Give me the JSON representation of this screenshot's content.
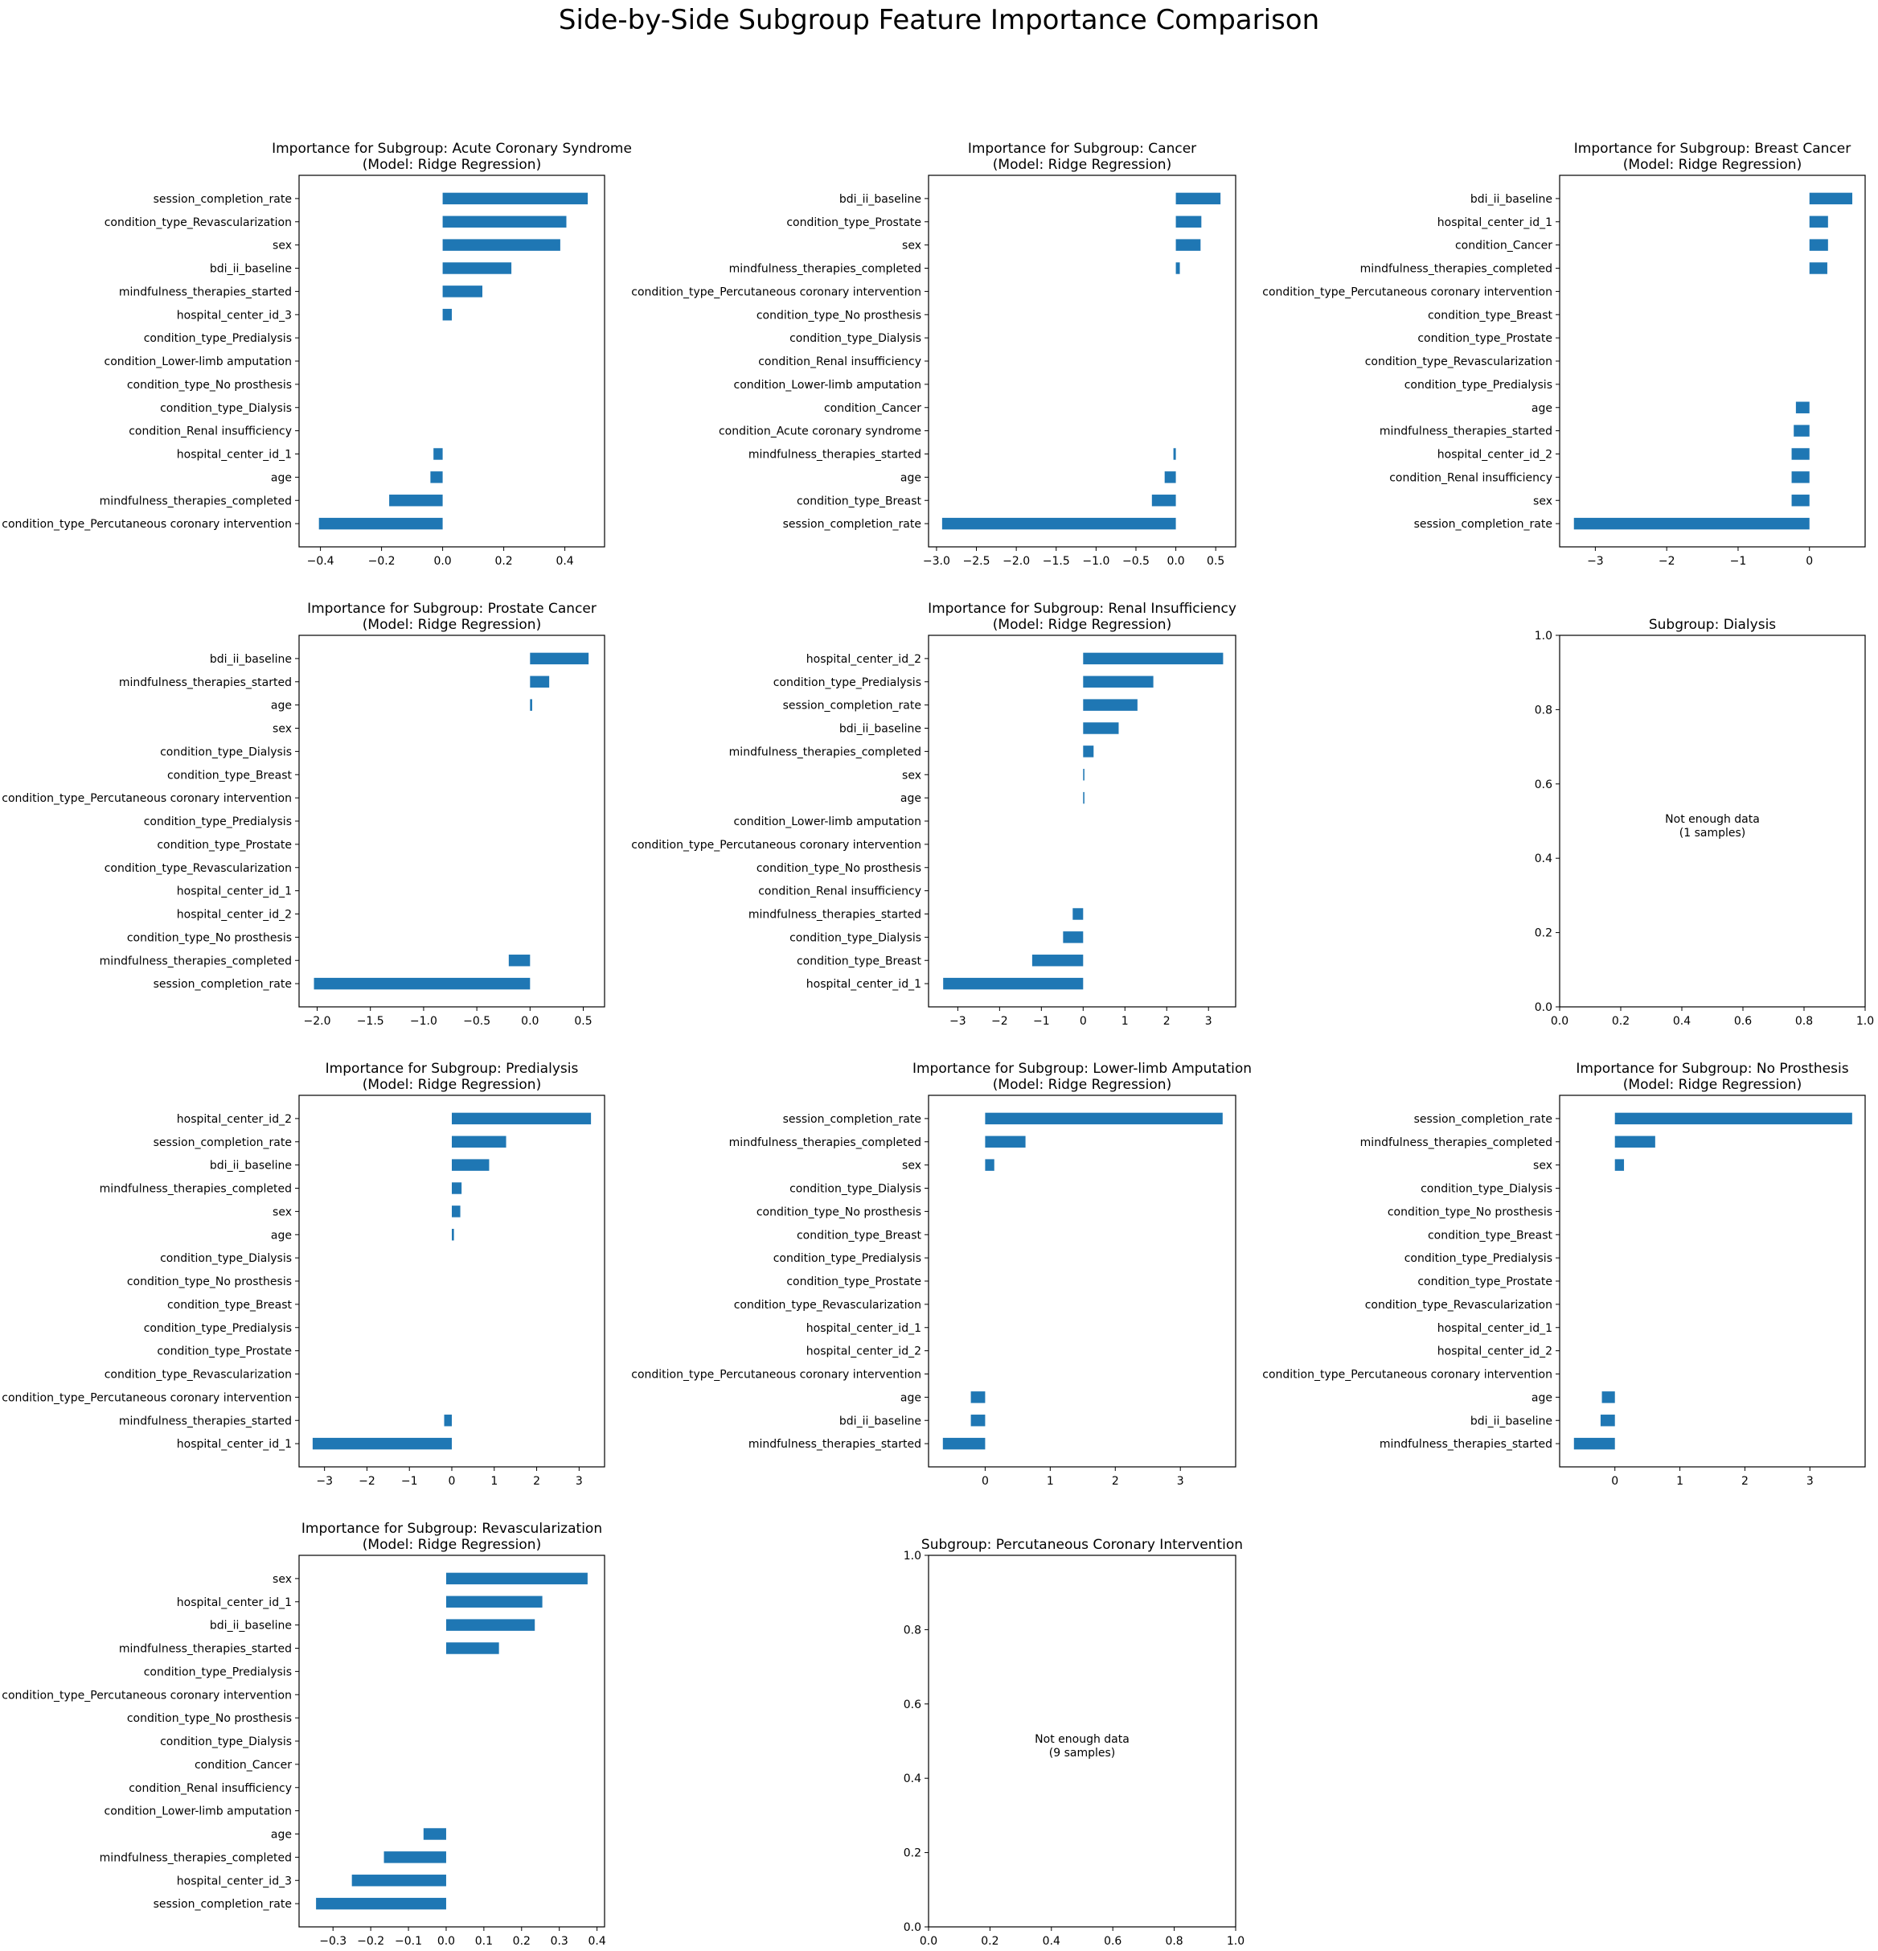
{
  "figure": {
    "suptitle": "Side-by-Side Subgroup Feature Importance Comparison",
    "bar_color": "#1f77b4"
  },
  "chart_data": [
    {
      "type": "bar",
      "orientation": "horizontal",
      "title": "Importance for Subgroup: Acute Coronary Syndrome\n(Model: Ridge Regression)",
      "categories": [
        "session_completion_rate",
        "condition_type_Revascularization",
        "sex",
        "bdi_ii_baseline",
        "mindfulness_therapies_started",
        "hospital_center_id_3",
        "condition_type_Predialysis",
        "condition_Lower-limb amputation",
        "condition_type_No prosthesis",
        "condition_type_Dialysis",
        "condition_Renal insufficiency",
        "hospital_center_id_1",
        "age",
        "mindfulness_therapies_completed",
        "condition_type_Percutaneous coronary intervention"
      ],
      "values": [
        0.475,
        0.405,
        0.385,
        0.225,
        0.13,
        0.03,
        0,
        0,
        0,
        0,
        0,
        -0.03,
        -0.04,
        -0.175,
        -0.405
      ],
      "xlim": [
        -0.47,
        0.53
      ],
      "xticks": [
        -0.4,
        -0.2,
        0.0,
        0.2,
        0.4
      ],
      "xtick_labels": [
        "−0.4",
        "−0.2",
        "0.0",
        "0.2",
        "0.4"
      ]
    },
    {
      "type": "bar",
      "orientation": "horizontal",
      "title": "Importance for Subgroup: Cancer\n(Model: Ridge Regression)",
      "categories": [
        "bdi_ii_baseline",
        "condition_type_Prostate",
        "sex",
        "mindfulness_therapies_completed",
        "condition_type_Percutaneous coronary intervention",
        "condition_type_No prosthesis",
        "condition_type_Dialysis",
        "condition_Renal insufficiency",
        "condition_Lower-limb amputation",
        "condition_Cancer",
        "condition_Acute coronary syndrome",
        "mindfulness_therapies_started",
        "age",
        "condition_type_Breast",
        "session_completion_rate"
      ],
      "values": [
        0.56,
        0.32,
        0.31,
        0.05,
        0,
        0,
        0,
        0,
        0,
        0,
        0,
        -0.03,
        -0.14,
        -0.3,
        -2.93
      ],
      "xlim": [
        -3.1,
        0.75
      ],
      "xticks": [
        -3.0,
        -2.5,
        -2.0,
        -1.5,
        -1.0,
        -0.5,
        0.0,
        0.5
      ],
      "xtick_labels": [
        "−3.0",
        "−2.5",
        "−2.0",
        "−1.5",
        "−1.0",
        "−0.5",
        "0.0",
        "0.5"
      ]
    },
    {
      "type": "bar",
      "orientation": "horizontal",
      "title": "Importance for Subgroup: Breast Cancer\n(Model: Ridge Regression)",
      "categories": [
        "bdi_ii_baseline",
        "hospital_center_id_1",
        "condition_Cancer",
        "mindfulness_therapies_completed",
        "condition_type_Percutaneous coronary intervention",
        "condition_type_Breast",
        "condition_type_Prostate",
        "condition_type_Revascularization",
        "condition_type_Predialysis",
        "age",
        "mindfulness_therapies_started",
        "hospital_center_id_2",
        "condition_Renal insufficiency",
        "sex",
        "session_completion_rate"
      ],
      "values": [
        0.6,
        0.26,
        0.26,
        0.25,
        0,
        0,
        0,
        0,
        0,
        -0.19,
        -0.22,
        -0.25,
        -0.25,
        -0.25,
        -3.3
      ],
      "xlim": [
        -3.5,
        0.78
      ],
      "xticks": [
        -3,
        -2,
        -1,
        0
      ],
      "xtick_labels": [
        "−3",
        "−2",
        "−1",
        "0"
      ]
    },
    {
      "type": "bar",
      "orientation": "horizontal",
      "title": "Importance for Subgroup: Prostate Cancer\n(Model: Ridge Regression)",
      "categories": [
        "bdi_ii_baseline",
        "mindfulness_therapies_started",
        "age",
        "sex",
        "condition_type_Dialysis",
        "condition_type_Breast",
        "condition_type_Percutaneous coronary intervention",
        "condition_type_Predialysis",
        "condition_type_Prostate",
        "condition_type_Revascularization",
        "hospital_center_id_1",
        "hospital_center_id_2",
        "condition_type_No prosthesis",
        "mindfulness_therapies_completed",
        "session_completion_rate"
      ],
      "values": [
        0.55,
        0.18,
        0.02,
        0,
        0,
        0,
        0,
        0,
        0,
        0,
        0,
        0,
        0,
        -0.2,
        -2.03
      ],
      "xlim": [
        -2.17,
        0.7
      ],
      "xticks": [
        -2.0,
        -1.5,
        -1.0,
        -0.5,
        0.0,
        0.5
      ],
      "xtick_labels": [
        "−2.0",
        "−1.5",
        "−1.0",
        "−0.5",
        "0.0",
        "0.5"
      ]
    },
    {
      "type": "bar",
      "orientation": "horizontal",
      "title": "Importance for Subgroup: Renal Insufficiency\n(Model: Ridge Regression)",
      "categories": [
        "hospital_center_id_2",
        "condition_type_Predialysis",
        "session_completion_rate",
        "bdi_ii_baseline",
        "mindfulness_therapies_completed",
        "sex",
        "age",
        "condition_Lower-limb amputation",
        "condition_type_Percutaneous coronary intervention",
        "condition_type_No prosthesis",
        "condition_Renal insufficiency",
        "mindfulness_therapies_started",
        "condition_type_Dialysis",
        "condition_type_Breast",
        "hospital_center_id_1"
      ],
      "values": [
        3.35,
        1.68,
        1.3,
        0.85,
        0.25,
        0.03,
        0.03,
        0,
        0,
        0,
        0,
        -0.25,
        -0.48,
        -1.22,
        -3.35
      ],
      "xlim": [
        -3.7,
        3.65
      ],
      "xticks": [
        -3,
        -2,
        -1,
        0,
        1,
        2,
        3
      ],
      "xtick_labels": [
        "−3",
        "−2",
        "−1",
        "0",
        "1",
        "2",
        "3"
      ]
    },
    {
      "type": "empty",
      "title": "Subgroup: Dialysis",
      "message": "Not enough data\n(1 samples)",
      "xlim": [
        0,
        1
      ],
      "ylim": [
        0,
        1
      ],
      "xticks": [
        0.0,
        0.2,
        0.4,
        0.6,
        0.8,
        1.0
      ],
      "xtick_labels": [
        "0.0",
        "0.2",
        "0.4",
        "0.6",
        "0.8",
        "1.0"
      ],
      "yticks": [
        0.0,
        0.2,
        0.4,
        0.6,
        0.8,
        1.0
      ],
      "ytick_labels": [
        "0.0",
        "0.2",
        "0.4",
        "0.6",
        "0.8",
        "1.0"
      ]
    },
    {
      "type": "bar",
      "orientation": "horizontal",
      "title": "Importance for Subgroup: Predialysis\n(Model: Ridge Regression)",
      "categories": [
        "hospital_center_id_2",
        "session_completion_rate",
        "bdi_ii_baseline",
        "mindfulness_therapies_completed",
        "sex",
        "age",
        "condition_type_Dialysis",
        "condition_type_No prosthesis",
        "condition_type_Breast",
        "condition_type_Predialysis",
        "condition_type_Prostate",
        "condition_type_Revascularization",
        "condition_type_Percutaneous coronary intervention",
        "mindfulness_therapies_started",
        "hospital_center_id_1"
      ],
      "values": [
        3.28,
        1.28,
        0.88,
        0.23,
        0.2,
        0.05,
        0,
        0,
        0,
        0,
        0,
        0,
        0,
        -0.18,
        -3.28
      ],
      "xlim": [
        -3.6,
        3.6
      ],
      "xticks": [
        -3,
        -2,
        -1,
        0,
        1,
        2,
        3
      ],
      "xtick_labels": [
        "−3",
        "−2",
        "−1",
        "0",
        "1",
        "2",
        "3"
      ]
    },
    {
      "type": "bar",
      "orientation": "horizontal",
      "title": "Importance for Subgroup: Lower-limb Amputation\n(Model: Ridge Regression)",
      "categories": [
        "session_completion_rate",
        "mindfulness_therapies_completed",
        "sex",
        "condition_type_Dialysis",
        "condition_type_No prosthesis",
        "condition_type_Breast",
        "condition_type_Predialysis",
        "condition_type_Prostate",
        "condition_type_Revascularization",
        "hospital_center_id_1",
        "hospital_center_id_2",
        "condition_type_Percutaneous coronary intervention",
        "age",
        "bdi_ii_baseline",
        "mindfulness_therapies_started"
      ],
      "values": [
        3.65,
        0.62,
        0.14,
        0,
        0,
        0,
        0,
        0,
        0,
        0,
        0,
        0,
        -0.22,
        -0.22,
        -0.65
      ],
      "xlim": [
        -0.87,
        3.85
      ],
      "xticks": [
        0,
        1,
        2,
        3
      ],
      "xtick_labels": [
        "0",
        "1",
        "2",
        "3"
      ]
    },
    {
      "type": "bar",
      "orientation": "horizontal",
      "title": "Importance for Subgroup: No Prosthesis\n(Model: Ridge Regression)",
      "categories": [
        "session_completion_rate",
        "mindfulness_therapies_completed",
        "sex",
        "condition_type_Dialysis",
        "condition_type_No prosthesis",
        "condition_type_Breast",
        "condition_type_Predialysis",
        "condition_type_Prostate",
        "condition_type_Revascularization",
        "hospital_center_id_1",
        "hospital_center_id_2",
        "condition_type_Percutaneous coronary intervention",
        "age",
        "bdi_ii_baseline",
        "mindfulness_therapies_started"
      ],
      "values": [
        3.65,
        0.62,
        0.14,
        0,
        0,
        0,
        0,
        0,
        0,
        0,
        0,
        0,
        -0.2,
        -0.22,
        -0.63
      ],
      "xlim": [
        -0.85,
        3.85
      ],
      "xticks": [
        0,
        1,
        2,
        3
      ],
      "xtick_labels": [
        "0",
        "1",
        "2",
        "3"
      ]
    },
    {
      "type": "bar",
      "orientation": "horizontal",
      "title": "Importance for Subgroup: Revascularization\n(Model: Ridge Regression)",
      "categories": [
        "sex",
        "hospital_center_id_1",
        "bdi_ii_baseline",
        "mindfulness_therapies_started",
        "condition_type_Predialysis",
        "condition_type_Percutaneous coronary intervention",
        "condition_type_No prosthesis",
        "condition_type_Dialysis",
        "condition_Cancer",
        "condition_Renal insufficiency",
        "condition_Lower-limb amputation",
        "age",
        "mindfulness_therapies_completed",
        "hospital_center_id_3",
        "session_completion_rate"
      ],
      "values": [
        0.375,
        0.255,
        0.235,
        0.14,
        0,
        0,
        0,
        0,
        0,
        0,
        0,
        -0.06,
        -0.165,
        -0.25,
        -0.345
      ],
      "xlim": [
        -0.39,
        0.42
      ],
      "xticks": [
        -0.3,
        -0.2,
        -0.1,
        0.0,
        0.1,
        0.2,
        0.3,
        0.4
      ],
      "xtick_labels": [
        "−0.3",
        "−0.2",
        "−0.1",
        "0.0",
        "0.1",
        "0.2",
        "0.3",
        "0.4"
      ]
    },
    {
      "type": "empty",
      "title": "Subgroup: Percutaneous Coronary Intervention",
      "message": "Not enough data\n(9 samples)",
      "xlim": [
        0,
        1
      ],
      "ylim": [
        0,
        1
      ],
      "xticks": [
        0.0,
        0.2,
        0.4,
        0.6,
        0.8,
        1.0
      ],
      "xtick_labels": [
        "0.0",
        "0.2",
        "0.4",
        "0.6",
        "0.8",
        "1.0"
      ],
      "yticks": [
        0.0,
        0.2,
        0.4,
        0.6,
        0.8,
        1.0
      ],
      "ytick_labels": [
        "0.0",
        "0.2",
        "0.4",
        "0.6",
        "0.8",
        "1.0"
      ]
    }
  ]
}
